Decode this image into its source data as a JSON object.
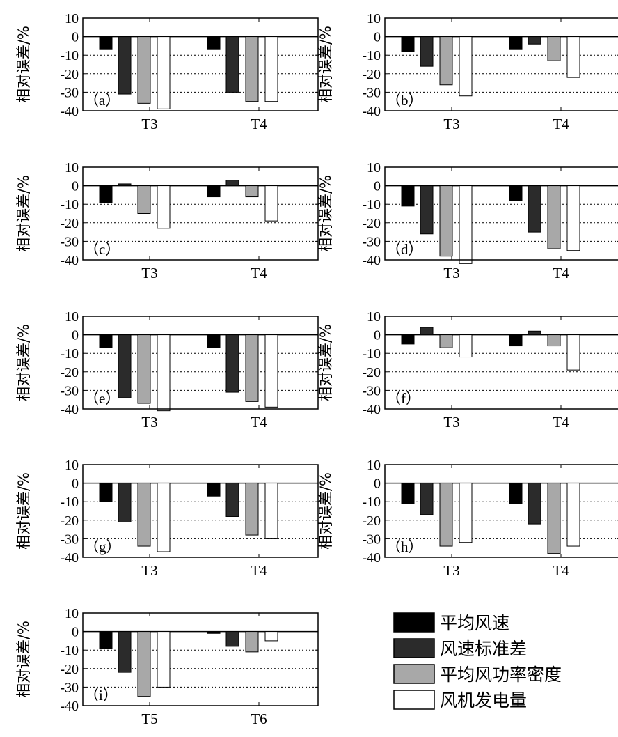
{
  "chart_data": [
    {
      "type": "bar",
      "panel_label": "（a）",
      "ylabel": "相对误差/%",
      "ylim": [
        -40,
        10
      ],
      "yticks": [
        10,
        0,
        -10,
        -20,
        -30,
        -40
      ],
      "categories": [
        "T3",
        "T4"
      ],
      "series": [
        {
          "name": "平均风速",
          "values": [
            -7,
            -7
          ]
        },
        {
          "name": "风速标准差",
          "values": [
            -31,
            -30
          ]
        },
        {
          "name": "平均风功率密度",
          "values": [
            -36,
            -35
          ]
        },
        {
          "name": "风机发电量",
          "values": [
            -39,
            -35
          ]
        }
      ]
    },
    {
      "type": "bar",
      "panel_label": "（b）",
      "ylabel": "相对误差/%",
      "ylim": [
        -40,
        10
      ],
      "yticks": [
        10,
        0,
        -10,
        -20,
        -30,
        -40
      ],
      "categories": [
        "T3",
        "T4"
      ],
      "series": [
        {
          "name": "平均风速",
          "values": [
            -8,
            -7
          ]
        },
        {
          "name": "风速标准差",
          "values": [
            -16,
            -4
          ]
        },
        {
          "name": "平均风功率密度",
          "values": [
            -26,
            -13
          ]
        },
        {
          "name": "风机发电量",
          "values": [
            -32,
            -22
          ]
        }
      ]
    },
    {
      "type": "bar",
      "panel_label": "（c）",
      "ylabel": "相对误差/%",
      "ylim": [
        -40,
        10
      ],
      "yticks": [
        10,
        0,
        -10,
        -20,
        -30,
        -40
      ],
      "categories": [
        "T3",
        "T4"
      ],
      "series": [
        {
          "name": "平均风速",
          "values": [
            -9,
            -6
          ]
        },
        {
          "name": "风速标准差",
          "values": [
            1,
            3
          ]
        },
        {
          "name": "平均风功率密度",
          "values": [
            -15,
            -6
          ]
        },
        {
          "name": "风机发电量",
          "values": [
            -23,
            -19
          ]
        }
      ]
    },
    {
      "type": "bar",
      "panel_label": "（d）",
      "ylabel": "相对误差/%",
      "ylim": [
        -40,
        10
      ],
      "yticks": [
        10,
        0,
        -10,
        -20,
        -30,
        -40
      ],
      "categories": [
        "T3",
        "T4"
      ],
      "series": [
        {
          "name": "平均风速",
          "values": [
            -11,
            -8
          ]
        },
        {
          "name": "风速标准差",
          "values": [
            -26,
            -25
          ]
        },
        {
          "name": "平均风功率密度",
          "values": [
            -38,
            -34
          ]
        },
        {
          "name": "风机发电量",
          "values": [
            -42,
            -35
          ]
        }
      ]
    },
    {
      "type": "bar",
      "panel_label": "（e）",
      "ylabel": "相对误差/%",
      "ylim": [
        -40,
        10
      ],
      "yticks": [
        10,
        0,
        -10,
        -20,
        -30,
        -40
      ],
      "categories": [
        "T3",
        "T4"
      ],
      "series": [
        {
          "name": "平均风速",
          "values": [
            -7,
            -7
          ]
        },
        {
          "name": "风速标准差",
          "values": [
            -34,
            -31
          ]
        },
        {
          "name": "平均风功率密度",
          "values": [
            -37,
            -36
          ]
        },
        {
          "name": "风机发电量",
          "values": [
            -41,
            -39
          ]
        }
      ]
    },
    {
      "type": "bar",
      "panel_label": "（f）",
      "ylabel": "相对误差/%",
      "ylim": [
        -40,
        10
      ],
      "yticks": [
        10,
        0,
        -10,
        -20,
        -30,
        -40
      ],
      "categories": [
        "T3",
        "T4"
      ],
      "series": [
        {
          "name": "平均风速",
          "values": [
            -5,
            -6
          ]
        },
        {
          "name": "风速标准差",
          "values": [
            4,
            2
          ]
        },
        {
          "name": "平均风功率密度",
          "values": [
            -7,
            -6
          ]
        },
        {
          "name": "风机发电量",
          "values": [
            -12,
            -19
          ]
        }
      ]
    },
    {
      "type": "bar",
      "panel_label": "（g）",
      "ylabel": "相对误差/%",
      "ylim": [
        -40,
        10
      ],
      "yticks": [
        10,
        0,
        -10,
        -20,
        -30,
        -40
      ],
      "categories": [
        "T3",
        "T4"
      ],
      "series": [
        {
          "name": "平均风速",
          "values": [
            -10,
            -7
          ]
        },
        {
          "name": "风速标准差",
          "values": [
            -21,
            -18
          ]
        },
        {
          "name": "平均风功率密度",
          "values": [
            -34,
            -28
          ]
        },
        {
          "name": "风机发电量",
          "values": [
            -37,
            -30
          ]
        }
      ]
    },
    {
      "type": "bar",
      "panel_label": "（h）",
      "ylabel": "相对误差/%",
      "ylim": [
        -40,
        10
      ],
      "yticks": [
        10,
        0,
        -10,
        -20,
        -30,
        -40
      ],
      "categories": [
        "T3",
        "T4"
      ],
      "series": [
        {
          "name": "平均风速",
          "values": [
            -11,
            -11
          ]
        },
        {
          "name": "风速标准差",
          "values": [
            -17,
            -22
          ]
        },
        {
          "name": "平均风功率密度",
          "values": [
            -34,
            -38
          ]
        },
        {
          "name": "风机发电量",
          "values": [
            -32,
            -34
          ]
        }
      ]
    },
    {
      "type": "bar",
      "panel_label": "（i）",
      "ylabel": "相对误差/%",
      "ylim": [
        -40,
        10
      ],
      "yticks": [
        10,
        0,
        -10,
        -20,
        -30,
        -40
      ],
      "categories": [
        "T5",
        "T6"
      ],
      "series": [
        {
          "name": "平均风速",
          "values": [
            -9,
            -1
          ]
        },
        {
          "name": "风速标准差",
          "values": [
            -22,
            -8
          ]
        },
        {
          "name": "平均风功率密度",
          "values": [
            -35,
            -11
          ]
        },
        {
          "name": "风机发电量",
          "values": [
            -30,
            -5
          ]
        }
      ]
    }
  ],
  "legend": {
    "placement": "bottom-right",
    "items": [
      {
        "label": "平均风速",
        "color": "#000000"
      },
      {
        "label": "风速标准差",
        "color": "#2b2b2b"
      },
      {
        "label": "平均风功率密度",
        "color": "#a8a8a8"
      },
      {
        "label": "风机发电量",
        "color": "#ffffff"
      }
    ]
  },
  "series_colors": [
    "#000000",
    "#2b2b2b",
    "#a8a8a8",
    "#ffffff"
  ],
  "grid": "dotted horizontal at -10, -20, -30"
}
